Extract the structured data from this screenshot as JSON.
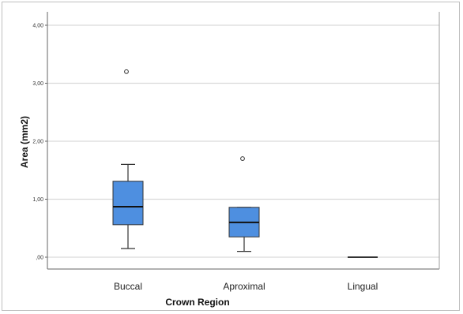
{
  "chart_data": {
    "type": "boxplot",
    "xlabel": "Crown Region",
    "ylabel": "Area (mm2)",
    "ylim": [
      0,
      4.2
    ],
    "yticks": [
      {
        "value": 0,
        "label": ",00"
      },
      {
        "value": 1,
        "label": "1,00"
      },
      {
        "value": 2,
        "label": "2,00"
      },
      {
        "value": 3,
        "label": "3,00"
      },
      {
        "value": 4,
        "label": "4,00"
      }
    ],
    "grid": true,
    "box_color": "#4e8fe0",
    "box_edge_color": "#333333",
    "gridline_color": "#d9d9d9",
    "categories": [
      "Buccal",
      "Aproximal",
      "Lingual"
    ],
    "boxes": [
      {
        "category": "Buccal",
        "whisker_low": 0.15,
        "q1": 0.56,
        "median": 0.87,
        "q3": 1.31,
        "whisker_high": 1.6,
        "outliers": [
          3.2
        ]
      },
      {
        "category": "Aproximal",
        "whisker_low": 0.1,
        "q1": 0.35,
        "median": 0.6,
        "q3": 0.86,
        "whisker_high": 0.86,
        "outliers": [
          1.7
        ]
      },
      {
        "category": "Lingual",
        "whisker_low": 0.0,
        "q1": 0.0,
        "median": 0.0,
        "q3": 0.0,
        "whisker_high": 0.0,
        "outliers": []
      }
    ]
  }
}
